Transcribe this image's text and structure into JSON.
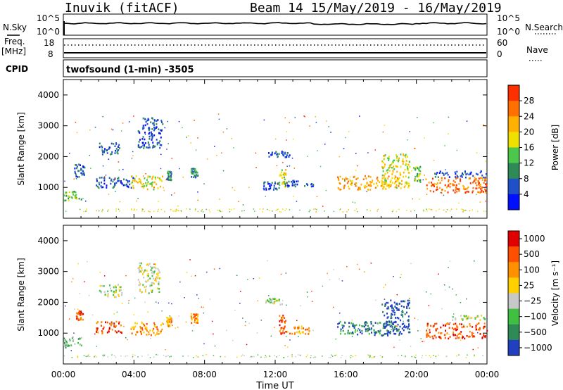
{
  "header": {
    "station": "Inuvik (fitACF)",
    "beam_date": "Beam 14 15/May/2019 - 16/May/2019"
  },
  "top_panel": {
    "left_label": "N.Sky",
    "left_ticks": [
      "10^5",
      "10^0"
    ],
    "right_ticks": [
      "10^5",
      "10^0"
    ],
    "right_label": "N.Search"
  },
  "freq_panel": {
    "left_label": "Freq.",
    "left_unit": "[MHz]",
    "left_ticks": [
      "18",
      "8"
    ],
    "right_ticks": [
      "60",
      "0"
    ],
    "right_label": "Nave"
  },
  "cpid": {
    "label": "CPID",
    "program": "twofsound (1-min) -3505"
  },
  "chart_data": [
    {
      "type": "scatter",
      "title": "",
      "xlabel": "Time UT",
      "ylabel": "Slant Range [km]",
      "x_ticks": [
        "00:00",
        "04:00",
        "08:00",
        "12:00",
        "16:00",
        "20:00",
        "00:00"
      ],
      "y_ticks": [
        "1000",
        "2000",
        "3000",
        "4000"
      ],
      "ylim": [
        0,
        4500
      ],
      "xlim_hours": [
        0,
        24
      ],
      "colorbar": {
        "label": "Power [dB]",
        "ticks": [
          "4",
          "8",
          "12",
          "16",
          "20",
          "24",
          "28"
        ],
        "colors": [
          "#0010ff",
          "#2050c8",
          "#2e8b57",
          "#4bc84b",
          "#f0e000",
          "#ffb000",
          "#ff7000",
          "#ff3000"
        ]
      },
      "clusters": [
        {
          "t0": 0.0,
          "t1": 1.0,
          "r0": 560,
          "r1": 900,
          "level": 3
        },
        {
          "t0": 0.6,
          "t1": 1.2,
          "r0": 1350,
          "r1": 1800,
          "level": 1
        },
        {
          "t0": 1.8,
          "t1": 4.0,
          "r0": 1000,
          "r1": 1350,
          "level": 1
        },
        {
          "t0": 2.0,
          "t1": 3.2,
          "r0": 2100,
          "r1": 2500,
          "level": 1
        },
        {
          "t0": 3.8,
          "t1": 5.6,
          "r0": 950,
          "r1": 1400,
          "level": 4
        },
        {
          "t0": 4.2,
          "t1": 5.6,
          "r0": 2300,
          "r1": 3300,
          "level": 1
        },
        {
          "t0": 5.8,
          "t1": 6.1,
          "r0": 1250,
          "r1": 1550,
          "level": 2
        },
        {
          "t0": 7.2,
          "t1": 7.6,
          "r0": 1350,
          "r1": 1650,
          "level": 2
        },
        {
          "t0": 11.3,
          "t1": 12.2,
          "r0": 950,
          "r1": 1200,
          "level": 1
        },
        {
          "t0": 11.6,
          "t1": 12.8,
          "r0": 2000,
          "r1": 2200,
          "level": 1
        },
        {
          "t0": 12.2,
          "t1": 12.6,
          "r0": 1000,
          "r1": 1600,
          "level": 4
        },
        {
          "t0": 12.5,
          "t1": 14.2,
          "r0": 1050,
          "r1": 1250,
          "level": 1
        },
        {
          "t0": 15.5,
          "t1": 19.0,
          "r0": 950,
          "r1": 1400,
          "level": 5
        },
        {
          "t0": 18.0,
          "t1": 19.6,
          "r0": 1000,
          "r1": 2100,
          "level": 4
        },
        {
          "t0": 19.8,
          "t1": 20.2,
          "r0": 1200,
          "r1": 1700,
          "level": 3
        },
        {
          "t0": 20.5,
          "t1": 24.0,
          "r0": 850,
          "r1": 1350,
          "level": 6
        },
        {
          "t0": 21.0,
          "t1": 24.0,
          "r0": 1350,
          "r1": 1550,
          "level": 1
        },
        {
          "t0": 0.0,
          "t1": 24.0,
          "r0": 220,
          "r1": 320,
          "level": 4
        }
      ]
    },
    {
      "type": "scatter",
      "title": "",
      "xlabel": "Time UT",
      "ylabel": "Slant Range [km]",
      "x_ticks": [
        "00:00",
        "04:00",
        "08:00",
        "12:00",
        "16:00",
        "20:00",
        "00:00"
      ],
      "y_ticks": [
        "1000",
        "2000",
        "3000",
        "4000"
      ],
      "ylim": [
        0,
        4500
      ],
      "xlim_hours": [
        0,
        24
      ],
      "colorbar": {
        "label": "Velocity [m s⁻¹]",
        "ticks": [
          "1000",
          "500",
          "100",
          "25",
          "−25",
          "−100",
          "−500",
          "−1000"
        ],
        "colors": [
          "#2040c0",
          "#2e8b57",
          "#40c040",
          "#c8c8c8",
          "#ffd000",
          "#ff9000",
          "#ff5000",
          "#e00000"
        ]
      },
      "clusters": [
        {
          "t0": 0.0,
          "t1": 1.0,
          "r0": 560,
          "r1": 900,
          "level": 2
        },
        {
          "t0": 0.7,
          "t1": 1.1,
          "r0": 1450,
          "r1": 1750,
          "level": 6
        },
        {
          "t0": 1.8,
          "t1": 3.4,
          "r0": 1000,
          "r1": 1400,
          "level": 6
        },
        {
          "t0": 2.0,
          "t1": 3.3,
          "r0": 2200,
          "r1": 2600,
          "level": 3
        },
        {
          "t0": 3.8,
          "t1": 5.6,
          "r0": 950,
          "r1": 1400,
          "level": 5
        },
        {
          "t0": 4.2,
          "t1": 5.5,
          "r0": 2300,
          "r1": 3300,
          "level": 3
        },
        {
          "t0": 5.8,
          "t1": 6.1,
          "r0": 1250,
          "r1": 1550,
          "level": 5
        },
        {
          "t0": 7.2,
          "t1": 7.6,
          "r0": 1350,
          "r1": 1650,
          "level": 5
        },
        {
          "t0": 11.4,
          "t1": 12.4,
          "r0": 1950,
          "r1": 2150,
          "level": 3
        },
        {
          "t0": 12.2,
          "t1": 12.6,
          "r0": 1000,
          "r1": 1600,
          "level": 6
        },
        {
          "t0": 12.6,
          "t1": 14.0,
          "r0": 1000,
          "r1": 1250,
          "level": 5
        },
        {
          "t0": 15.5,
          "t1": 19.0,
          "r0": 950,
          "r1": 1400,
          "level": 1
        },
        {
          "t0": 18.0,
          "t1": 19.6,
          "r0": 1000,
          "r1": 2100,
          "level": 0
        },
        {
          "t0": 20.5,
          "t1": 24.0,
          "r0": 850,
          "r1": 1350,
          "level": 6
        },
        {
          "t0": 22.0,
          "t1": 24.0,
          "r0": 1450,
          "r1": 1600,
          "level": 3
        },
        {
          "t0": 0.0,
          "t1": 24.0,
          "r0": 220,
          "r1": 320,
          "level": 3
        }
      ]
    }
  ]
}
